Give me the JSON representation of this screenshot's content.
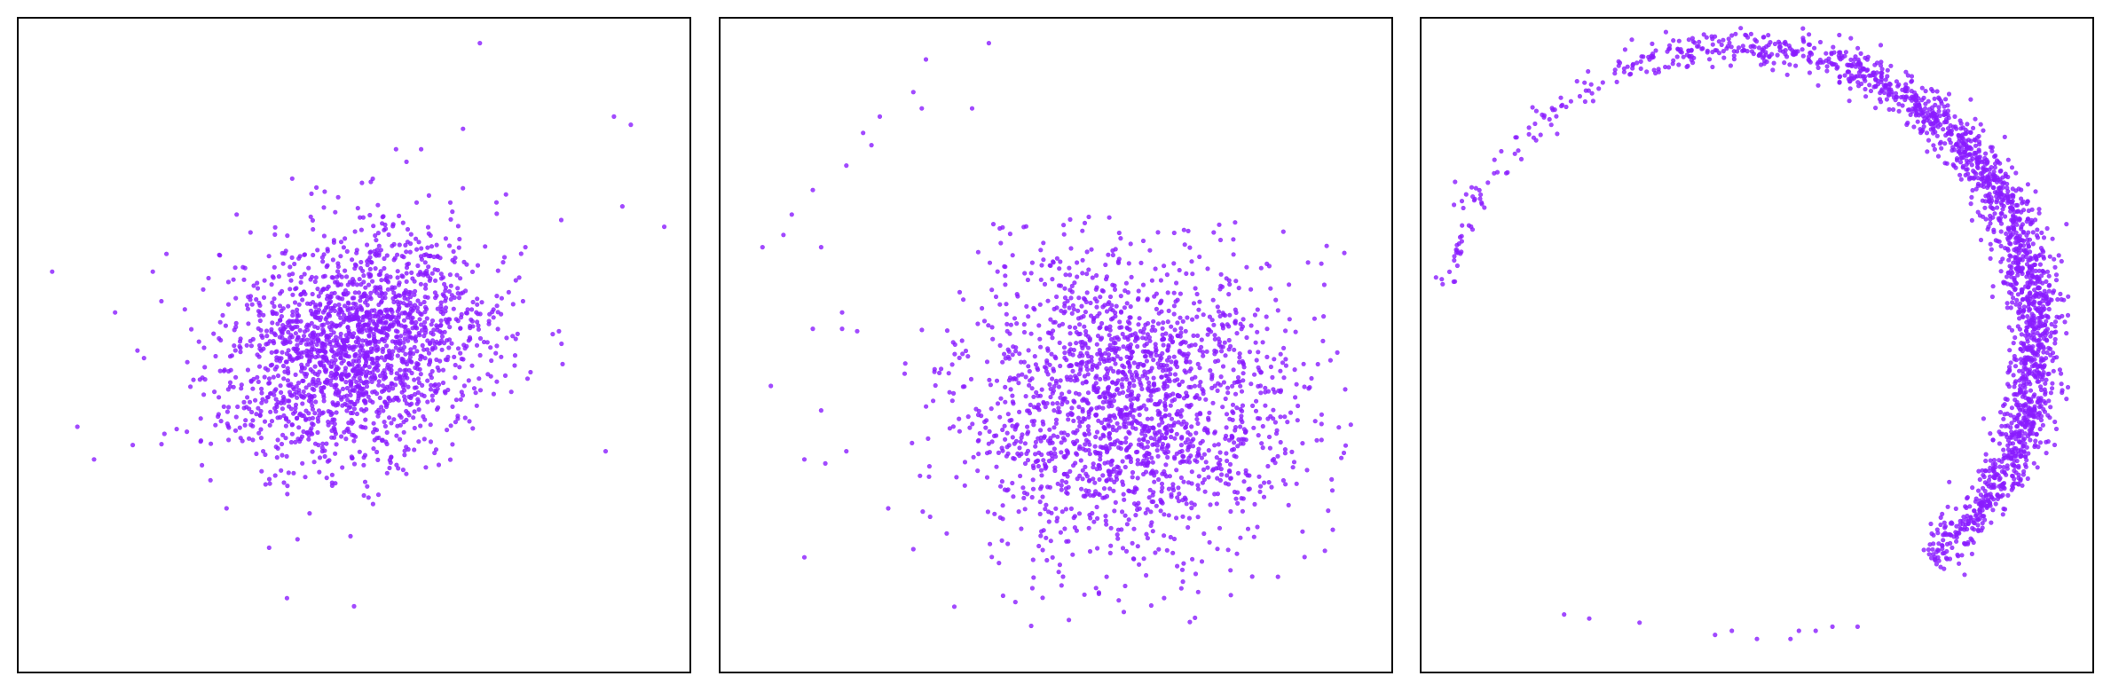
{
  "chart_data": [
    {
      "type": "scatter",
      "title": "",
      "xlabel": "",
      "ylabel": "",
      "ticks": "none",
      "grid": false,
      "legend": "none",
      "xlim": [
        -4,
        4
      ],
      "ylim": [
        -4,
        4
      ],
      "point_color": "#8a1cff",
      "point_opacity": 0.8,
      "distribution": {
        "shape": "gaussian",
        "n_points": 2000,
        "center": [
          0,
          0
        ],
        "std": [
          0.78,
          0.72
        ],
        "correlation": 0.2,
        "outliers": [
          [
            1.5,
            3.7
          ],
          [
            3.1,
            2.8
          ],
          [
            3.3,
            2.7
          ],
          [
            1.3,
            2.65
          ],
          [
            0.5,
            2.4
          ],
          [
            0.8,
            2.4
          ],
          [
            0.2,
            2.0
          ],
          [
            -0.35,
            1.88
          ],
          [
            -1.4,
            1.6
          ],
          [
            3.2,
            1.7
          ],
          [
            3.7,
            1.45
          ],
          [
            -3.6,
            0.9
          ],
          [
            -2.4,
            0.9
          ],
          [
            -1.6,
            1.1
          ],
          [
            -2.85,
            0.4
          ],
          [
            -3.3,
            -1.0
          ],
          [
            -3.1,
            -1.4
          ],
          [
            3.0,
            -1.3
          ],
          [
            -0.8,
            -3.1
          ],
          [
            0.0,
            -3.2
          ]
        ]
      }
    },
    {
      "type": "scatter",
      "title": "",
      "xlabel": "",
      "ylabel": "",
      "ticks": "none",
      "grid": false,
      "legend": "none",
      "xlim": [
        -4,
        4
      ],
      "ylim": [
        -4,
        4
      ],
      "point_color": "#8a1cff",
      "point_opacity": 0.8,
      "distribution": {
        "shape": "wide-cluster",
        "n_points": 2000,
        "center": [
          0.85,
          -0.7
        ],
        "std": [
          1.0,
          0.95
        ],
        "right_edge": 3.55,
        "outliers": [
          [
            -0.8,
            3.7
          ],
          [
            -1.55,
            3.5
          ],
          [
            -1.7,
            3.1
          ],
          [
            -1.6,
            2.9
          ],
          [
            -1.0,
            2.9
          ],
          [
            -2.1,
            2.8
          ],
          [
            -2.3,
            2.6
          ],
          [
            -2.2,
            2.45
          ],
          [
            -2.5,
            2.2
          ],
          [
            -2.9,
            1.9
          ],
          [
            -3.15,
            1.6
          ],
          [
            -3.25,
            1.35
          ],
          [
            -2.8,
            1.2
          ],
          [
            -3.5,
            1.2
          ],
          [
            -2.55,
            0.4
          ],
          [
            -2.9,
            0.2
          ],
          [
            -2.55,
            0.2
          ],
          [
            -3.4,
            -0.5
          ],
          [
            -2.8,
            -0.8
          ],
          [
            -2.5,
            -1.3
          ],
          [
            -2.75,
            -1.45
          ],
          [
            -3.0,
            -1.4
          ],
          [
            -3.0,
            -2.6
          ],
          [
            -1.7,
            -2.5
          ],
          [
            -2.0,
            -2.0
          ]
        ]
      }
    },
    {
      "type": "scatter",
      "title": "",
      "xlabel": "",
      "ylabel": "",
      "ticks": "none",
      "grid": false,
      "legend": "none",
      "xlim": [
        -4,
        4
      ],
      "ylim": [
        -4,
        4
      ],
      "point_color": "#8a1cff",
      "point_opacity": 0.8,
      "distribution": {
        "shape": "arc",
        "n_points": 2000,
        "center": [
          -0.2,
          0.1
        ],
        "radius": 3.55,
        "theta_range_deg": [
          -80,
          140
        ],
        "theta_peak_deg": 80,
        "radial_width": 0.12,
        "outliers": [
          [
            -3.6,
            2.0
          ],
          [
            -2.3,
            -3.3
          ],
          [
            -2.0,
            -3.35
          ],
          [
            -1.4,
            -3.4
          ],
          [
            -0.5,
            -3.55
          ],
          [
            -0.3,
            -3.5
          ],
          [
            0.0,
            -3.6
          ],
          [
            0.4,
            -3.6
          ],
          [
            0.5,
            -3.5
          ],
          [
            0.7,
            -3.5
          ],
          [
            0.9,
            -3.45
          ],
          [
            1.2,
            -3.45
          ]
        ]
      }
    }
  ]
}
